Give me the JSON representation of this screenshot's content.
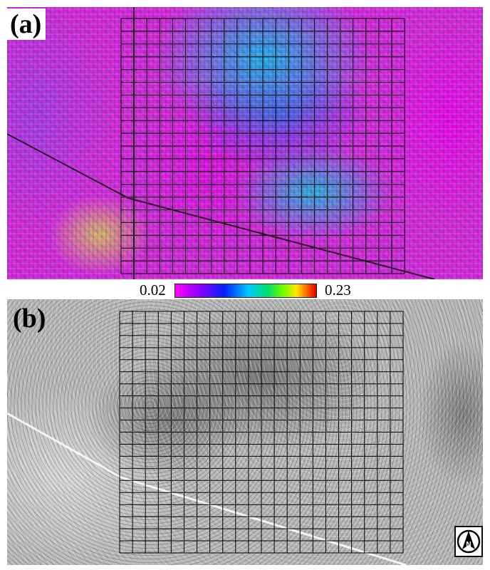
{
  "panel_a": {
    "label": "(a)"
  },
  "colorbar": {
    "min_label": "0.02",
    "max_label": "0.23"
  },
  "panel_b": {
    "label": "(b)"
  },
  "north_arrow": {
    "letter": "N",
    "icon": "north-arrow-icon"
  },
  "grid": {
    "rows": 20,
    "cols": 22
  },
  "colors": {
    "grid_lines": "#000000",
    "colorbar_stops": [
      "#ff00ff",
      "#8a00ff",
      "#0022ff",
      "#00c8ff",
      "#00e06a",
      "#6bff00",
      "#ffe600",
      "#ff5a00",
      "#e00000"
    ]
  }
}
